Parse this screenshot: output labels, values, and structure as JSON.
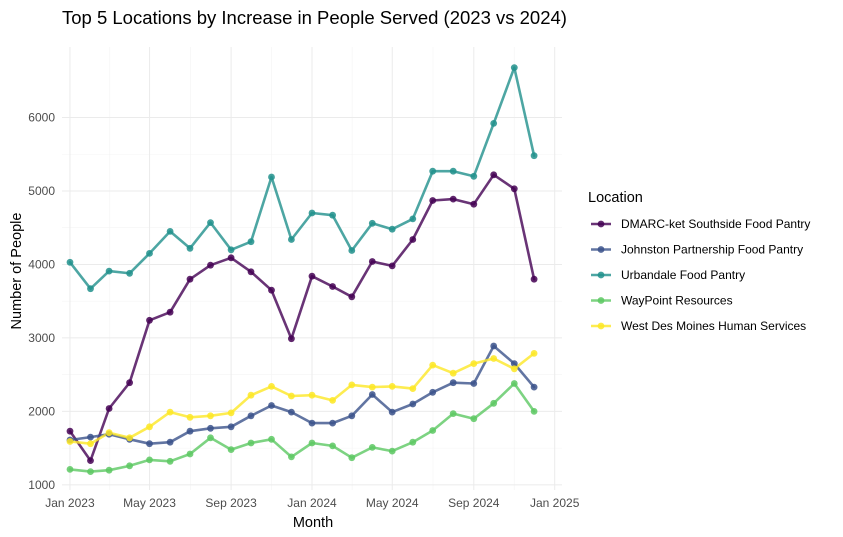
{
  "chart_data": {
    "type": "line",
    "title": "Top 5 Locations by Increase in People Served (2023 vs 2024)",
    "xlabel": "Month",
    "ylabel": "Number of People",
    "legend_title": "Location",
    "legend_position": "right",
    "grid": true,
    "x": [
      "2023-01",
      "2023-02",
      "2023-03",
      "2023-04",
      "2023-05",
      "2023-06",
      "2023-07",
      "2023-08",
      "2023-09",
      "2023-10",
      "2023-11",
      "2023-12",
      "2024-01",
      "2024-02",
      "2024-03",
      "2024-04",
      "2024-05",
      "2024-06",
      "2024-07",
      "2024-08",
      "2024-09",
      "2024-10",
      "2024-11",
      "2024-12"
    ],
    "xlim": [
      "2022-12-20",
      "2025-01-12"
    ],
    "ylim": [
      930,
      6960
    ],
    "x_ticks": [
      {
        "label": "Jan 2023",
        "date": "2023-01-01"
      },
      {
        "label": "May 2023",
        "date": "2023-05-01"
      },
      {
        "label": "Sep 2023",
        "date": "2023-09-01"
      },
      {
        "label": "Jan 2024",
        "date": "2024-01-01"
      },
      {
        "label": "May 2024",
        "date": "2024-05-01"
      },
      {
        "label": "Sep 2024",
        "date": "2024-09-01"
      },
      {
        "label": "Jan 2025",
        "date": "2025-01-01"
      }
    ],
    "y_ticks": [
      1000,
      2000,
      3000,
      4000,
      5000,
      6000
    ],
    "series": [
      {
        "name": "DMARC-ket Southside Food Pantry",
        "color": "#440154",
        "values": [
          1730,
          1330,
          2040,
          2390,
          3240,
          3350,
          3800,
          3990,
          4090,
          3900,
          3650,
          2990,
          3840,
          3700,
          3560,
          4040,
          3980,
          4340,
          4870,
          4890,
          4820,
          5220,
          5030,
          3800
        ]
      },
      {
        "name": "Johnston Partnership Food Pantry",
        "color": "#3B528B",
        "values": [
          1610,
          1650,
          1690,
          1620,
          1560,
          1580,
          1730,
          1770,
          1790,
          1940,
          2080,
          1990,
          1840,
          1840,
          1940,
          2230,
          1990,
          2100,
          2260,
          2390,
          2380,
          2890,
          2650,
          2330
        ]
      },
      {
        "name": "Urbandale Food Pantry",
        "color": "#21908C",
        "values": [
          4030,
          3670,
          3910,
          3880,
          4150,
          4450,
          4220,
          4570,
          4200,
          4310,
          5190,
          4340,
          4700,
          4670,
          4190,
          4560,
          4480,
          4620,
          5270,
          5270,
          5200,
          5920,
          6680,
          5480
        ]
      },
      {
        "name": "WayPoint Resources",
        "color": "#5DC863",
        "values": [
          1210,
          1180,
          1200,
          1260,
          1340,
          1320,
          1420,
          1640,
          1480,
          1570,
          1620,
          1380,
          1570,
          1530,
          1370,
          1510,
          1460,
          1580,
          1740,
          1970,
          1900,
          2110,
          2380,
          2000
        ]
      },
      {
        "name": "West Des Moines Human Services",
        "color": "#FDE725",
        "values": [
          1590,
          1560,
          1710,
          1640,
          1790,
          1990,
          1920,
          1940,
          1980,
          2220,
          2340,
          2210,
          2220,
          2150,
          2360,
          2330,
          2340,
          2310,
          2630,
          2520,
          2650,
          2720,
          2580,
          2790
        ]
      }
    ]
  }
}
